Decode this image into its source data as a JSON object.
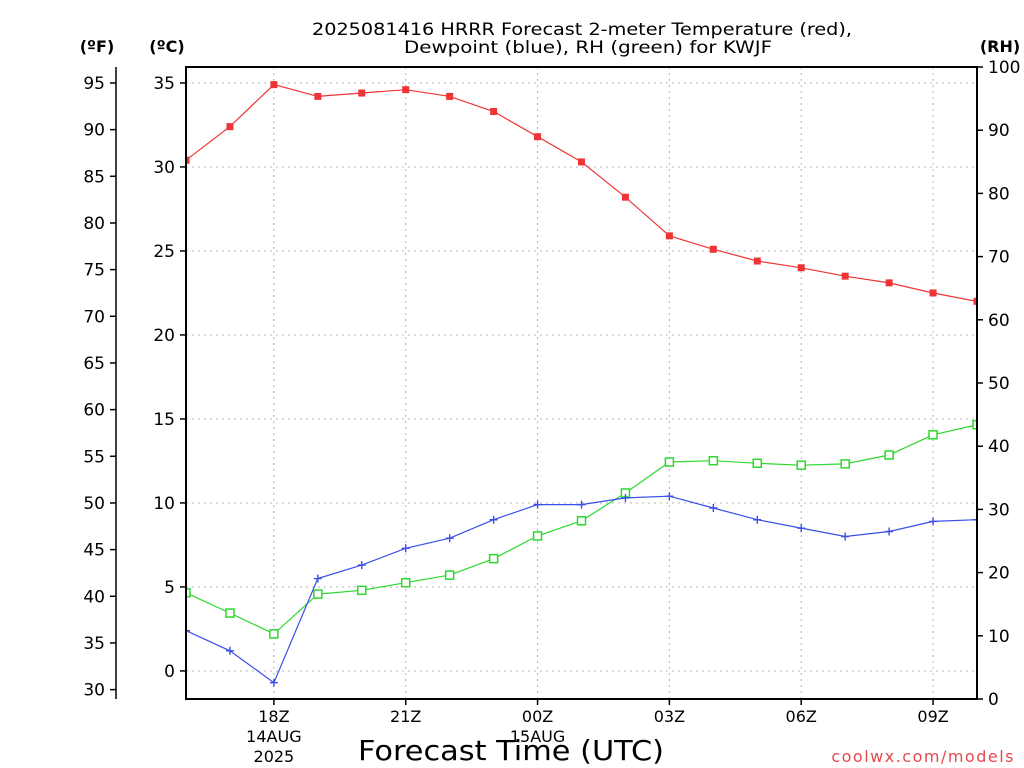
{
  "watermark": "coolwx.com/models",
  "colors": {
    "grid": "#b4b4b4",
    "frame": "#000000",
    "watermark": "#e5484d"
  },
  "chart_data": {
    "type": "line",
    "title": [
      "2025081416 HRRR Forecast 2-meter Temperature (red),",
      "Dewpoint (blue), RH (green) for KWJF"
    ],
    "xlabel": "Forecast Time (UTC)",
    "y_units": {
      "fahrenheit": "(ºF)",
      "celsius": "(ºC)",
      "rh": "(RH)"
    },
    "x": [
      "2025-08-14T16:00Z",
      "2025-08-14T17:00Z",
      "2025-08-14T18:00Z",
      "2025-08-14T19:00Z",
      "2025-08-14T20:00Z",
      "2025-08-14T21:00Z",
      "2025-08-14T22:00Z",
      "2025-08-14T23:00Z",
      "2025-08-15T00:00Z",
      "2025-08-15T01:00Z",
      "2025-08-15T02:00Z",
      "2025-08-15T03:00Z",
      "2025-08-15T04:00Z",
      "2025-08-15T05:00Z",
      "2025-08-15T06:00Z",
      "2025-08-15T07:00Z",
      "2025-08-15T08:00Z",
      "2025-08-15T09:00Z",
      "2025-08-15T10:00Z"
    ],
    "xlim": [
      "2025-08-14T16:00Z",
      "2025-08-15T10:00Z"
    ],
    "x_ticks": [
      {
        "at": "2025-08-14T18:00Z",
        "label": "18Z",
        "date": "14AUG",
        "year": "2025"
      },
      {
        "at": "2025-08-14T21:00Z",
        "label": "21Z"
      },
      {
        "at": "2025-08-15T00:00Z",
        "label": "00Z",
        "date": "15AUG"
      },
      {
        "at": "2025-08-15T03:00Z",
        "label": "03Z"
      },
      {
        "at": "2025-08-15T06:00Z",
        "label": "06Z"
      },
      {
        "at": "2025-08-15T09:00Z",
        "label": "09Z"
      }
    ],
    "ylim": [
      -1.67,
      35.95
    ],
    "y_ticks": [
      0,
      5,
      10,
      15,
      20,
      25,
      30,
      35
    ],
    "y_ticks_f": [
      30,
      35,
      40,
      45,
      50,
      55,
      60,
      65,
      70,
      75,
      80,
      85,
      90,
      95
    ],
    "y2lim": [
      0,
      100
    ],
    "y2_ticks": [
      0,
      10,
      20,
      30,
      40,
      50,
      60,
      70,
      80,
      90,
      100
    ],
    "grid": true,
    "series": [
      {
        "color": "#2ed82e",
        "marker": "open-square",
        "axis": "right",
        "values": [
          16.8,
          13.6,
          10.3,
          16.6,
          17.2,
          18.4,
          19.6,
          22.2,
          25.8,
          28.2,
          32.6,
          37.5,
          37.7,
          37.3,
          37.0,
          37.2,
          38.6,
          41.8,
          43.4
        ]
      },
      {
        "color": "#3a4ee8",
        "marker": "plus",
        "axis": "left",
        "values": [
          2.4,
          1.2,
          -0.7,
          5.5,
          6.3,
          7.3,
          7.9,
          9.0,
          9.9,
          9.9,
          10.3,
          10.4,
          9.7,
          9.0,
          8.5,
          8.0,
          8.3,
          8.9,
          9.0
        ]
      },
      {
        "color": "#ee3535",
        "marker": "filled-square",
        "axis": "left",
        "values": [
          30.4,
          32.4,
          34.9,
          34.2,
          34.4,
          34.6,
          34.2,
          33.3,
          31.8,
          30.3,
          28.2,
          25.9,
          25.1,
          24.4,
          24.0,
          23.5,
          23.1,
          22.5,
          22.0
        ]
      }
    ]
  }
}
